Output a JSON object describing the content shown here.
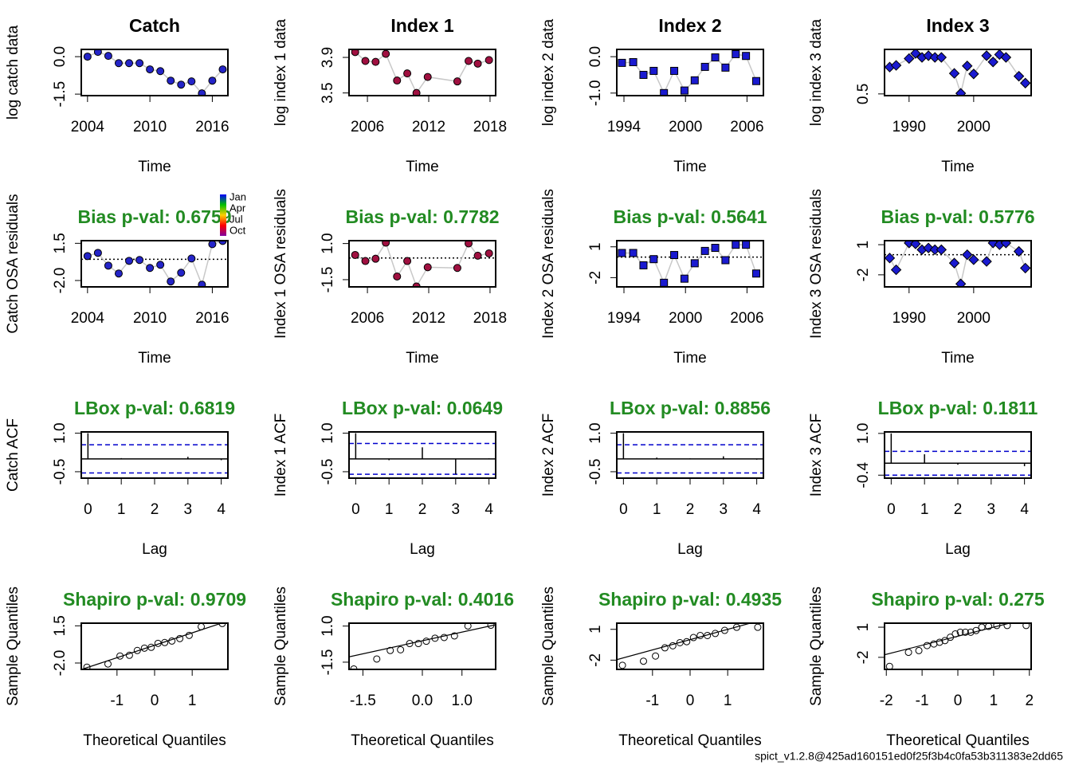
{
  "chart_data": [
    {
      "type": "series",
      "title": "Catch",
      "xlabel": "Time",
      "ylabel": "log catch data",
      "marker": "circle",
      "color": "#2424c8",
      "x": [
        2004,
        2005,
        2006,
        2007,
        2008,
        2009,
        2010,
        2011,
        2012,
        2013,
        2014,
        2015,
        2016,
        2017
      ],
      "values": [
        0.0,
        0.19,
        0.03,
        -0.26,
        -0.26,
        -0.26,
        -0.51,
        -0.58,
        -0.96,
        -1.12,
        -0.99,
        -1.47,
        -0.96,
        -0.51
      ],
      "xlim": [
        2003.4,
        2017.5
      ],
      "ylim": [
        -1.56,
        0.29
      ],
      "xticks": [
        2004,
        2010,
        2016
      ],
      "yticks": [
        -1.5,
        {
          "value": 0,
          "label": "0.0"
        }
      ]
    },
    {
      "type": "series",
      "title": "Index 1",
      "xlabel": "Time",
      "ylabel": "log index 1 data",
      "marker": "circle",
      "color": "#a01040",
      "x": [
        2004.8,
        2005.8,
        2006.8,
        2007.8,
        2008.9,
        2009.9,
        2010.8,
        2011.9,
        2014.8,
        2015.9,
        2016.8,
        2017.9
      ],
      "values": [
        3.96,
        3.86,
        3.85,
        3.94,
        3.64,
        3.72,
        3.5,
        3.68,
        3.63,
        3.86,
        3.83,
        3.87
      ],
      "xlim": [
        2004.2,
        2018.55
      ],
      "ylim": [
        3.47,
        3.99
      ],
      "xticks": [
        2006,
        2012,
        2018
      ],
      "yticks": [
        3.5,
        3.9
      ]
    },
    {
      "type": "series",
      "title": "Index 2",
      "xlabel": "Time",
      "ylabel": "log index 2 data",
      "marker": "square",
      "color": "#1a1ad0",
      "x": [
        1993.8,
        1994.9,
        1995.9,
        1996.9,
        1997.9,
        1998.9,
        1999.9,
        2000.9,
        2001.9,
        2002.9,
        2003.9,
        2004.9,
        2005.9,
        2006.9
      ],
      "values": [
        -0.17,
        -0.15,
        -0.5,
        -0.39,
        -1.0,
        -0.39,
        -0.93,
        -0.65,
        -0.28,
        -0.02,
        -0.3,
        0.07,
        0.02,
        -0.67
      ],
      "xlim": [
        1993.3,
        2007.6
      ],
      "ylim": [
        -1.07,
        0.2
      ],
      "xticks": [
        1994,
        2000,
        2006
      ],
      "yticks": [
        {
          "value": -1,
          "label": "-1.0"
        },
        {
          "value": 0,
          "label": "0.0"
        }
      ]
    },
    {
      "type": "series",
      "title": "Index 3",
      "xlabel": "Time",
      "ylabel": "log index 3 data",
      "marker": "diamond",
      "color": "#1a1ad0",
      "x": [
        1987,
        1988,
        1990,
        1991,
        1992,
        1993,
        1994,
        1995,
        1997,
        1998,
        1999,
        2000,
        2002,
        2003,
        2004,
        2005,
        2007,
        2008
      ],
      "values": [
        0.97,
        1.0,
        1.12,
        1.21,
        1.14,
        1.17,
        1.14,
        1.14,
        0.86,
        0.51,
        0.99,
        0.85,
        1.17,
        1.06,
        1.19,
        1.14,
        0.81,
        0.69
      ],
      "xlim": [
        1986.2,
        2008.9
      ],
      "ylim": [
        0.47,
        1.28
      ],
      "xticks": [
        1990,
        2000
      ],
      "yticks": [
        0.5
      ]
    },
    {
      "type": "series",
      "annotation": "Bias p-val: 0.6759",
      "xlabel": "Time",
      "ylabel": "Catch OSA residuals",
      "marker": "circle",
      "color": "#2424c8",
      "zero_line": true,
      "legend": {
        "labels": [
          "Jan",
          "Apr",
          "Jul",
          "Oct"
        ],
        "colors": [
          "#0000ff",
          "#00c000",
          "#ffd000",
          "#ff0000",
          "#8000a0"
        ]
      },
      "x": [
        2004,
        2005,
        2006,
        2007,
        2008,
        2009,
        2010,
        2011,
        2012,
        2013,
        2014,
        2015,
        2016,
        2017
      ],
      "values": [
        0.3,
        0.6,
        -0.6,
        -1.34,
        -0.15,
        -0.07,
        -0.82,
        -0.52,
        -2.09,
        -1.27,
        0.07,
        -2.39,
        1.42,
        1.72
      ],
      "xlim": [
        2003.4,
        2017.5
      ],
      "ylim": [
        -2.6,
        1.75
      ],
      "xticks": [
        2004,
        2010,
        2016
      ],
      "yticks": [
        {
          "value": -2,
          "label": "-2.0"
        },
        1.5
      ]
    },
    {
      "type": "series",
      "annotation": "Bias p-val: 0.7782",
      "xlabel": "Time",
      "ylabel": "Index 1 OSA residuals",
      "marker": "circle",
      "color": "#a01040",
      "zero_line": true,
      "x": [
        2004.8,
        2005.8,
        2006.8,
        2007.8,
        2008.9,
        2009.9,
        2010.8,
        2011.9,
        2014.8,
        2015.9,
        2016.8,
        2017.9
      ],
      "values": [
        0.21,
        -0.21,
        -0.05,
        1.06,
        -1.28,
        -0.21,
        -1.97,
        -0.64,
        -0.69,
        1.01,
        0.16,
        0.32
      ],
      "xlim": [
        2004.2,
        2018.55
      ],
      "ylim": [
        -2.0,
        1.2
      ],
      "xticks": [
        2006,
        2012,
        2018
      ],
      "yticks": [
        -1.5,
        {
          "value": 1,
          "label": "1.0"
        }
      ]
    },
    {
      "type": "series",
      "annotation": "Bias p-val: 0.5641",
      "xlabel": "Time",
      "ylabel": "Index 2 OSA residuals",
      "marker": "square",
      "color": "#1a1ad0",
      "zero_line": true,
      "x": [
        1993.8,
        1994.9,
        1995.9,
        1996.9,
        1997.9,
        1998.9,
        1999.9,
        2000.9,
        2001.9,
        2002.9,
        2003.9,
        2004.9,
        2005.9,
        2006.9
      ],
      "values": [
        0.4,
        0.4,
        -0.8,
        -0.2,
        -2.5,
        0.2,
        -2.1,
        -0.6,
        0.6,
        0.9,
        -0.3,
        1.2,
        1.2,
        -1.6
      ],
      "xlim": [
        1993.3,
        2007.6
      ],
      "ylim": [
        -2.9,
        1.6
      ],
      "xticks": [
        1994,
        2000,
        2006
      ],
      "yticks": [
        -2,
        1
      ]
    },
    {
      "type": "series",
      "annotation": "Bias p-val: 0.5776",
      "xlabel": "Time",
      "ylabel": "Index 3 OSA residuals",
      "marker": "diamond",
      "color": "#1a1ad0",
      "zero_line": true,
      "x": [
        1987,
        1988,
        1990,
        1991,
        1992,
        1993,
        1994,
        1995,
        1997,
        1998,
        1999,
        2000,
        2002,
        2003,
        2004,
        2005,
        2007,
        2008
      ],
      "values": [
        -0.33,
        -1.5,
        1.17,
        1.08,
        0.5,
        0.67,
        0.5,
        0.5,
        -0.83,
        -2.9,
        0,
        -0.5,
        -0.67,
        1.17,
        1.0,
        1.17,
        0.33,
        -1.33
      ],
      "xlim": [
        1986.2,
        2008.9
      ],
      "ylim": [
        -3.2,
        1.4
      ],
      "xticks": [
        1990,
        2000
      ],
      "yticks": [
        -2,
        1
      ]
    },
    {
      "type": "acf",
      "annotation": "LBox p-val: 0.6819",
      "xlabel": "Lag",
      "ylabel": "Catch ACF",
      "x": [
        0,
        1,
        2,
        3,
        4
      ],
      "values": [
        1,
        0.03,
        -0.02,
        0.08,
        -0.05
      ],
      "ci": 0.55,
      "ci_color": "#0000cc",
      "xlim": [
        -0.2,
        4.2
      ],
      "ylim": [
        -0.75,
        1.05
      ],
      "xticks": [
        0,
        1,
        2,
        3,
        4
      ],
      "yticks": [
        -0.5,
        {
          "value": 1,
          "label": "1.0"
        }
      ]
    },
    {
      "type": "acf",
      "annotation": "LBox p-val: 0.0649",
      "xlabel": "Lag",
      "ylabel": "Index 1 ACF",
      "x": [
        0,
        1,
        2,
        3,
        4
      ],
      "values": [
        1,
        -0.05,
        0.45,
        -0.6,
        0.02
      ],
      "ci": 0.6,
      "ci_color": "#0000cc",
      "xlim": [
        -0.2,
        4.2
      ],
      "ylim": [
        -0.75,
        1.05
      ],
      "xticks": [
        0,
        1,
        2,
        3,
        4
      ],
      "yticks": [
        -0.5,
        {
          "value": 1,
          "label": "1.0"
        }
      ]
    },
    {
      "type": "acf",
      "annotation": "LBox p-val: 0.8856",
      "xlabel": "Lag",
      "ylabel": "Index 2 ACF",
      "x": [
        0,
        1,
        2,
        3,
        4
      ],
      "values": [
        1,
        0.05,
        0.02,
        0.1,
        -0.03
      ],
      "ci": 0.55,
      "ci_color": "#0000cc",
      "xlim": [
        -0.2,
        4.2
      ],
      "ylim": [
        -0.75,
        1.05
      ],
      "xticks": [
        0,
        1,
        2,
        3,
        4
      ],
      "yticks": [
        -0.5,
        {
          "value": 1,
          "label": "1.0"
        }
      ]
    },
    {
      "type": "acf",
      "annotation": "LBox p-val: 0.1811",
      "xlabel": "Lag",
      "ylabel": "Index 3 ACF",
      "x": [
        0,
        1,
        2,
        3,
        4
      ],
      "values": [
        1,
        0.3,
        -0.05,
        0.02,
        -0.1
      ],
      "ci": 0.4,
      "ci_color": "#0000cc",
      "xlim": [
        -0.2,
        4.2
      ],
      "ylim": [
        -0.5,
        1.05
      ],
      "xticks": [
        0,
        1,
        2,
        3,
        4
      ],
      "yticks": [
        -0.4,
        {
          "value": 1,
          "label": "1.0"
        }
      ]
    },
    {
      "type": "qq",
      "annotation": "Shapiro p-val: 0.9709",
      "xlabel": "Theoretical Quantiles",
      "ylabel": "Sample Quantiles",
      "x": [
        -1.8,
        -1.24,
        -0.92,
        -0.67,
        -0.46,
        -0.27,
        -0.09,
        0.09,
        0.27,
        0.46,
        0.67,
        0.92,
        1.24,
        1.8
      ],
      "values": [
        -2.39,
        -2.09,
        -1.34,
        -1.27,
        -0.82,
        -0.6,
        -0.52,
        -0.15,
        -0.07,
        0.07,
        0.3,
        0.6,
        1.42,
        1.72
      ],
      "qq_line": {
        "intercept": -0.33,
        "slope": 1.17
      },
      "xlim": [
        -1.95,
        1.95
      ],
      "ylim": [
        -2.6,
        1.75
      ],
      "xticks": [
        -1,
        0,
        1
      ],
      "yticks": [
        {
          "value": -2,
          "label": "-2.0"
        },
        1.5
      ]
    },
    {
      "type": "qq",
      "annotation": "Shapiro p-val: 0.4016",
      "xlabel": "Theoretical Quantiles",
      "ylabel": "Sample Quantiles",
      "x": [
        -1.73,
        -1.15,
        -0.81,
        -0.55,
        -0.32,
        -0.1,
        0.1,
        0.32,
        0.55,
        0.81,
        1.15,
        1.73
      ],
      "values": [
        -1.97,
        -1.28,
        -0.69,
        -0.64,
        -0.21,
        -0.21,
        -0.05,
        0.16,
        0.21,
        0.32,
        1.01,
        1.06
      ],
      "qq_line": {
        "intercept": -0.02,
        "slope": 0.6
      },
      "xlim": [
        -1.85,
        1.85
      ],
      "ylim": [
        -2.0,
        1.2
      ],
      "xticks": [
        -1.5,
        {
          "value": 0,
          "label": "0.0"
        },
        {
          "value": 1,
          "label": "1.0"
        }
      ],
      "yticks": [
        -1.5,
        {
          "value": 1,
          "label": "1.0"
        }
      ]
    },
    {
      "type": "qq",
      "annotation": "Shapiro p-val: 0.4935",
      "xlabel": "Theoretical Quantiles",
      "ylabel": "Sample Quantiles",
      "x": [
        -1.8,
        -1.24,
        -0.92,
        -0.67,
        -0.46,
        -0.27,
        -0.09,
        0.09,
        0.27,
        0.46,
        0.67,
        0.92,
        1.24,
        1.8
      ],
      "values": [
        -2.5,
        -2.1,
        -1.6,
        -0.8,
        -0.6,
        -0.3,
        -0.2,
        0.2,
        0.4,
        0.4,
        0.6,
        0.9,
        1.2,
        1.2
      ],
      "qq_line": {
        "intercept": 0,
        "slope": 1.0
      },
      "xlim": [
        -1.95,
        1.95
      ],
      "ylim": [
        -2.9,
        1.6
      ],
      "xticks": [
        -1,
        0,
        1
      ],
      "yticks": [
        -2,
        1
      ]
    },
    {
      "type": "qq",
      "annotation": "Shapiro p-val: 0.275",
      "xlabel": "Theoretical Quantiles",
      "ylabel": "Sample Quantiles",
      "x": [
        -1.91,
        -1.38,
        -1.09,
        -0.86,
        -0.67,
        -0.51,
        -0.36,
        -0.21,
        -0.07,
        0.07,
        0.21,
        0.36,
        0.51,
        0.67,
        0.86,
        1.09,
        1.38,
        1.91
      ],
      "values": [
        -2.9,
        -1.5,
        -1.33,
        -0.83,
        -0.67,
        -0.5,
        -0.33,
        0,
        0.33,
        0.5,
        0.5,
        0.5,
        0.67,
        1.0,
        1.08,
        1.17,
        1.17,
        1.17
      ],
      "qq_line": {
        "intercept": 0.1,
        "slope": 0.9
      },
      "xlim": [
        -2.05,
        2.05
      ],
      "ylim": [
        -3.2,
        1.4
      ],
      "xticks": [
        -2,
        -1,
        0,
        1,
        2
      ],
      "yticks": [
        -2,
        1
      ]
    }
  ],
  "footer": "spict_v1.2.8@425ad160151ed0f25f3b4c0fa53b311383e2dd65"
}
